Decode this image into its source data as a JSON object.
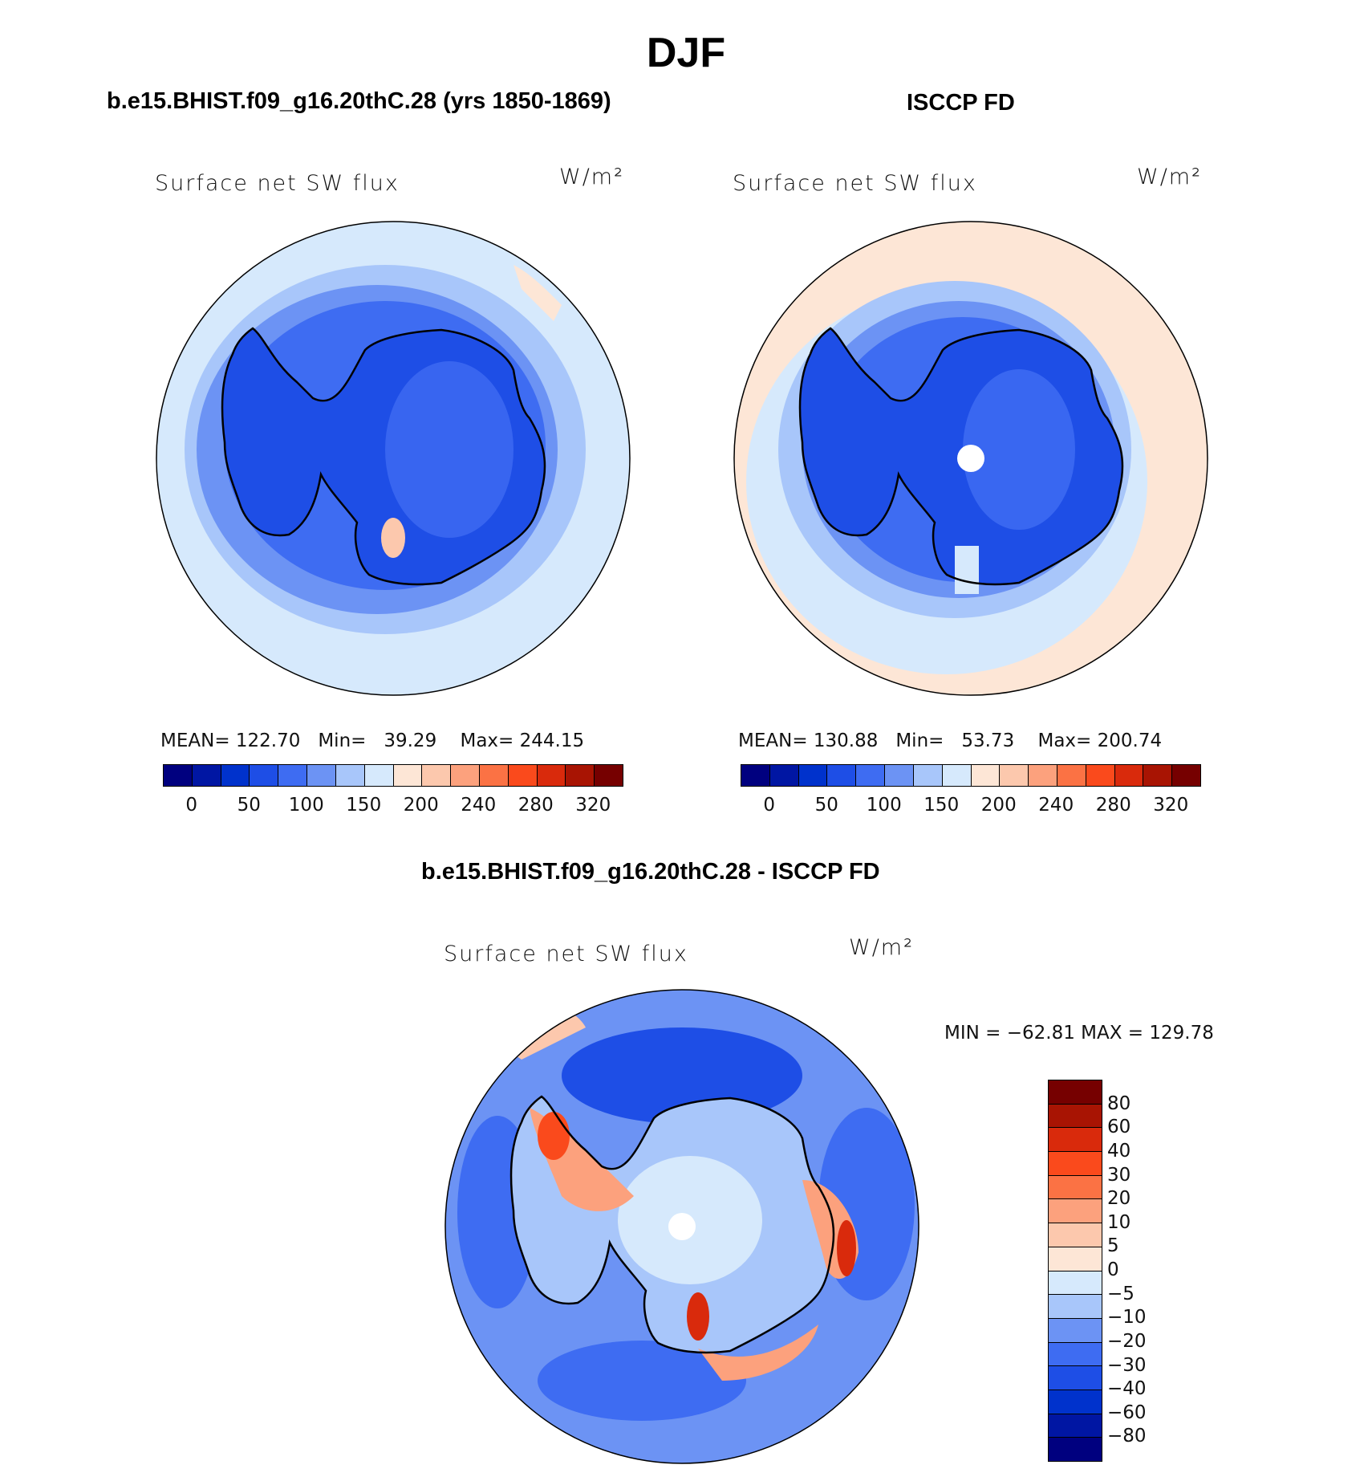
{
  "figure": {
    "title": "DJF",
    "left_panel_title": "b.e15.BHIST.f09_g16.20thC.28 (yrs 1850-1869)",
    "right_panel_title": "ISCCP FD",
    "diff_panel_title": "b.e15.BHIST.f09_g16.20thC.28 - ISCCP FD"
  },
  "panels": {
    "left": {
      "variable": "Surface net SW flux",
      "units": "W/m²",
      "stats": {
        "mean_label": "MEAN=",
        "mean": "122.70",
        "min_label": "Min=",
        "min": "39.29",
        "max_label": "Max=",
        "max": "244.15"
      }
    },
    "right": {
      "variable": "Surface net SW flux",
      "units": "W/m²",
      "stats": {
        "mean_label": "MEAN=",
        "mean": "130.88",
        "min_label": "Min=",
        "min": "53.73",
        "max_label": "Max=",
        "max": "200.74"
      }
    },
    "diff": {
      "variable": "Surface net SW flux",
      "units": "W/m²",
      "minmax": "MIN = −62.81 MAX = 129.78"
    }
  },
  "colorbars": {
    "abs_colors": [
      "#00007f",
      "#0016a3",
      "#0032cc",
      "#1e4ee6",
      "#3e6cf2",
      "#6c93f4",
      "#a8c6fa",
      "#d6e9fc",
      "#fde6d6",
      "#fcc8ad",
      "#fca17d",
      "#fb7244",
      "#fa4a1c",
      "#d92a0c",
      "#a81403",
      "#760000"
    ],
    "abs_tick_labels": [
      "0",
      "50",
      "100",
      "150",
      "200",
      "240",
      "280",
      "320"
    ],
    "diff_colors": [
      "#00007f",
      "#0016a3",
      "#0032cc",
      "#1e4ee6",
      "#3e6cf2",
      "#6c93f4",
      "#a8c6fa",
      "#d6e9fc",
      "#fde6d6",
      "#fcc8ad",
      "#fca17d",
      "#fb7244",
      "#fa4a1c",
      "#d92a0c",
      "#a81403",
      "#760000"
    ],
    "diff_tick_labels": [
      "80",
      "60",
      "40",
      "30",
      "20",
      "10",
      "5",
      "0",
      "−5",
      "−10",
      "−20",
      "−30",
      "−40",
      "−60",
      "−80"
    ]
  }
}
